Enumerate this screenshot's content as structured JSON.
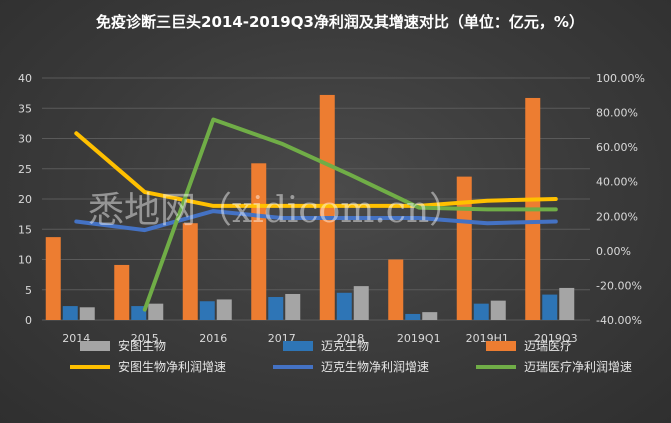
{
  "title": "免疫诊断三巨头2014-2019Q3净利润及其增速对比（单位：亿元，%）",
  "watermark": "悉地网（xidicom.cn）",
  "chart_data": {
    "type": "bar",
    "title": "免疫诊断三巨头2014-2019Q3净利润及其增速对比（单位：亿元，%）",
    "categories": [
      "2014",
      "2015",
      "2016",
      "2017",
      "2018",
      "2019Q1",
      "2019H1",
      "2019Q3"
    ],
    "ylim": [
      0,
      40
    ],
    "y_ticks": [
      "0",
      "5",
      "10",
      "15",
      "20",
      "25",
      "30",
      "35",
      "40"
    ],
    "y2lim": [
      -40,
      100
    ],
    "y2_ticks": [
      "-40.00%",
      "-20.00%",
      "0.00%",
      "20.00%",
      "40.00%",
      "60.00%",
      "80.00%",
      "100.00%"
    ],
    "bar_series": [
      {
        "name": "迈瑞医疗",
        "color": "#ed7d31",
        "values": [
          13.7,
          9.1,
          16.0,
          25.9,
          37.2,
          10.0,
          23.7,
          36.7
        ]
      },
      {
        "name": "迈克生物",
        "color": "#2e75b6",
        "values": [
          2.3,
          2.3,
          3.1,
          3.8,
          4.5,
          1.0,
          2.7,
          4.2
        ]
      },
      {
        "name": "安图生物",
        "color": "#a5a5a5",
        "values": [
          2.1,
          2.7,
          3.4,
          4.3,
          5.6,
          1.3,
          3.2,
          5.3
        ]
      }
    ],
    "line_series": [
      {
        "name": "安图生物净利润增速",
        "color": "#ffc000",
        "values": [
          68,
          34,
          26,
          26,
          26,
          26,
          29,
          30
        ]
      },
      {
        "name": "迈克生物净利润增速",
        "color": "#4472c4",
        "values": [
          17,
          12,
          23,
          19,
          19,
          19,
          16,
          17
        ]
      },
      {
        "name": "迈瑞医疗净利润增速",
        "color": "#70ad47",
        "values": [
          null,
          -34,
          76,
          62,
          44,
          25,
          24,
          24
        ]
      }
    ],
    "legend": {
      "position": "bottom",
      "items": [
        {
          "label": "安图生物",
          "kind": "bar",
          "color": "#a5a5a5"
        },
        {
          "label": "迈克生物",
          "kind": "bar",
          "color": "#2e75b6"
        },
        {
          "label": "迈瑞医疗",
          "kind": "bar",
          "color": "#ed7d31"
        },
        {
          "label": "安图生物净利润增速",
          "kind": "line",
          "color": "#ffc000"
        },
        {
          "label": "迈克生物净利润增速",
          "kind": "line",
          "color": "#4472c4"
        },
        {
          "label": "迈瑞医疗净利润增速",
          "kind": "line",
          "color": "#70ad47"
        }
      ]
    }
  }
}
